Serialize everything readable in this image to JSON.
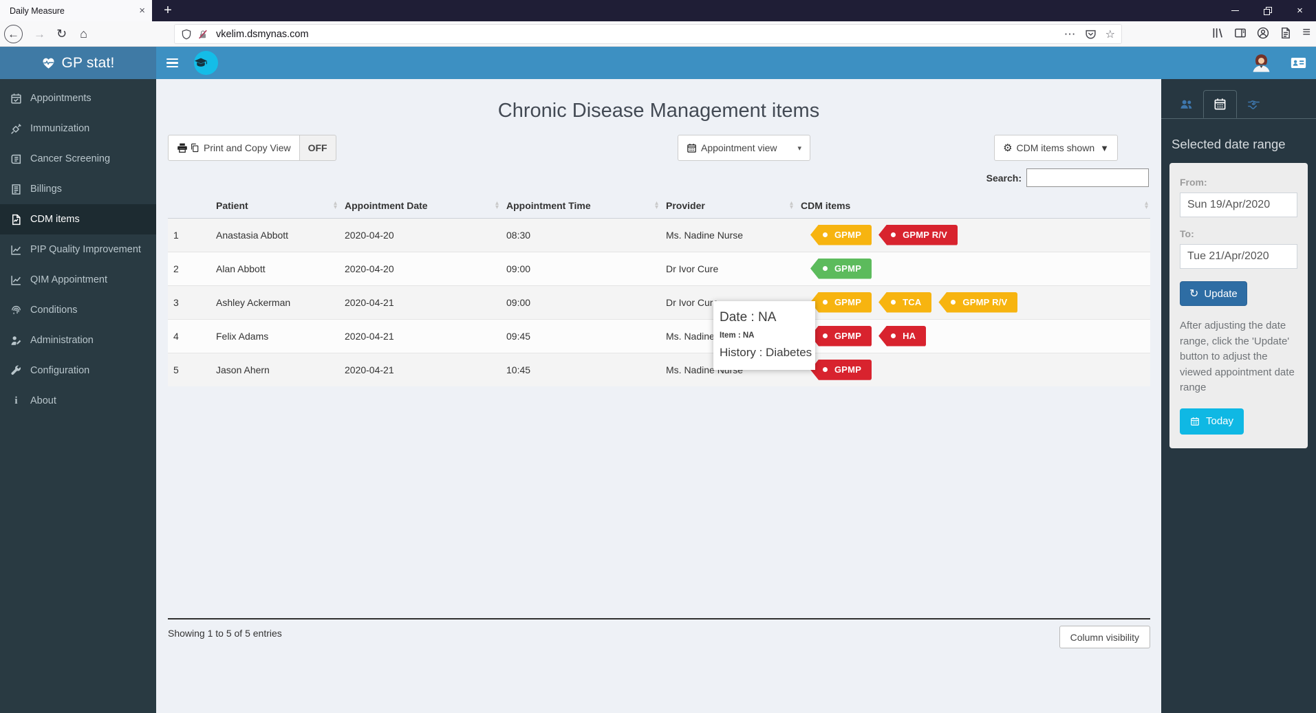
{
  "browser": {
    "tab_title": "Daily Measure",
    "url": "vkelim.dsmynas.com"
  },
  "app": {
    "brand": "GP stat!",
    "sidebar": {
      "items": [
        {
          "label": "Appointments",
          "icon": "calendar-check"
        },
        {
          "label": "Immunization",
          "icon": "syringe"
        },
        {
          "label": "Cancer Screening",
          "icon": "scroll"
        },
        {
          "label": "Billings",
          "icon": "billing"
        },
        {
          "label": "CDM items",
          "icon": "file-chart",
          "active": true
        },
        {
          "label": "PIP Quality Improvement",
          "icon": "chart-line"
        },
        {
          "label": "QIM Appointment",
          "icon": "chart-line"
        },
        {
          "label": "Conditions",
          "icon": "fingerprint"
        },
        {
          "label": "Administration",
          "icon": "user-pen"
        },
        {
          "label": "Configuration",
          "icon": "wrench"
        },
        {
          "label": "About",
          "icon": "info"
        }
      ]
    },
    "main": {
      "title": "Chronic Disease Management items",
      "print_copy_label": "Print and Copy View",
      "off_label": "OFF",
      "appointment_view_label": "Appointment view",
      "cdm_items_shown_label": "CDM items shown",
      "search_label": "Search:",
      "search_value": "",
      "table": {
        "headers": [
          "",
          "Patient",
          "Appointment Date",
          "Appointment Time",
          "Provider",
          "CDM items"
        ],
        "rows": [
          {
            "num": "1",
            "patient": "Anastasia Abbott",
            "date": "2020-04-20",
            "time": "08:30",
            "provider": "Ms. Nadine Nurse",
            "badges": [
              {
                "label": "GPMP",
                "color": "amber"
              },
              {
                "label": "GPMP R/V",
                "color": "red"
              }
            ]
          },
          {
            "num": "2",
            "patient": "Alan Abbott",
            "date": "2020-04-20",
            "time": "09:00",
            "provider": "Dr Ivor Cure",
            "badges": [
              {
                "label": "GPMP",
                "color": "green"
              }
            ]
          },
          {
            "num": "3",
            "patient": "Ashley Ackerman",
            "date": "2020-04-21",
            "time": "09:00",
            "provider": "Dr Ivor Cure",
            "badges": [
              {
                "label": "GPMP",
                "color": "amber"
              },
              {
                "label": "TCA",
                "color": "amber"
              },
              {
                "label": "GPMP R/V",
                "color": "amber"
              }
            ]
          },
          {
            "num": "4",
            "patient": "Felix Adams",
            "date": "2020-04-21",
            "time": "09:45",
            "provider": "Ms. Nadine Nurse",
            "badges": [
              {
                "label": "GPMP",
                "color": "red"
              },
              {
                "label": "HA",
                "color": "red"
              }
            ]
          },
          {
            "num": "5",
            "patient": "Jason Ahern",
            "date": "2020-04-21",
            "time": "10:45",
            "provider": "Ms. Nadine Nurse",
            "badges": [
              {
                "label": "GPMP",
                "color": "red"
              }
            ]
          }
        ],
        "showing_text": "Showing 1 to 5 of 5 entries",
        "column_visibility_label": "Column visibility"
      },
      "tooltip": {
        "line1": "Date : NA",
        "line2": "Item : NA",
        "line3": "History : Diabetes"
      }
    },
    "right_panel": {
      "tabs": [
        {
          "icon": "users"
        },
        {
          "icon": "calendar",
          "active": true
        },
        {
          "icon": "handshake"
        }
      ],
      "heading": "Selected date range",
      "from_label": "From:",
      "from_value": "Sun 19/Apr/2020",
      "to_label": "To:",
      "to_value": "Tue 21/Apr/2020",
      "update_label": "Update",
      "note": "After adjusting the date range, click the 'Update' button to adjust the viewed appointment date range",
      "today_label": "Today"
    },
    "colors": {
      "amber": "#f7b410",
      "red": "#d8232e",
      "green": "#5cbb5c",
      "header_blue": "#3d90c2",
      "logo_blue": "#3f7aa5",
      "sidebar_dark": "#293a42",
      "cyan_accent": "#14bde8",
      "update_blue": "#2e6da4",
      "today_cyan": "#0fb8e4"
    }
  },
  "icons": {
    "back": "←",
    "forward": "→",
    "reload": "↻",
    "home": "⌂",
    "overflow": "⋯",
    "bookmark-star": "☆",
    "menu": "≡",
    "tab-close": "×",
    "new-tab": "+",
    "window-close": "×",
    "caret-down": "▾",
    "caret-down-filled": "▼",
    "gear": "⚙",
    "update-refresh": "↻",
    "sort-asc": "▴",
    "sort-desc": "▾",
    "info": "i"
  }
}
